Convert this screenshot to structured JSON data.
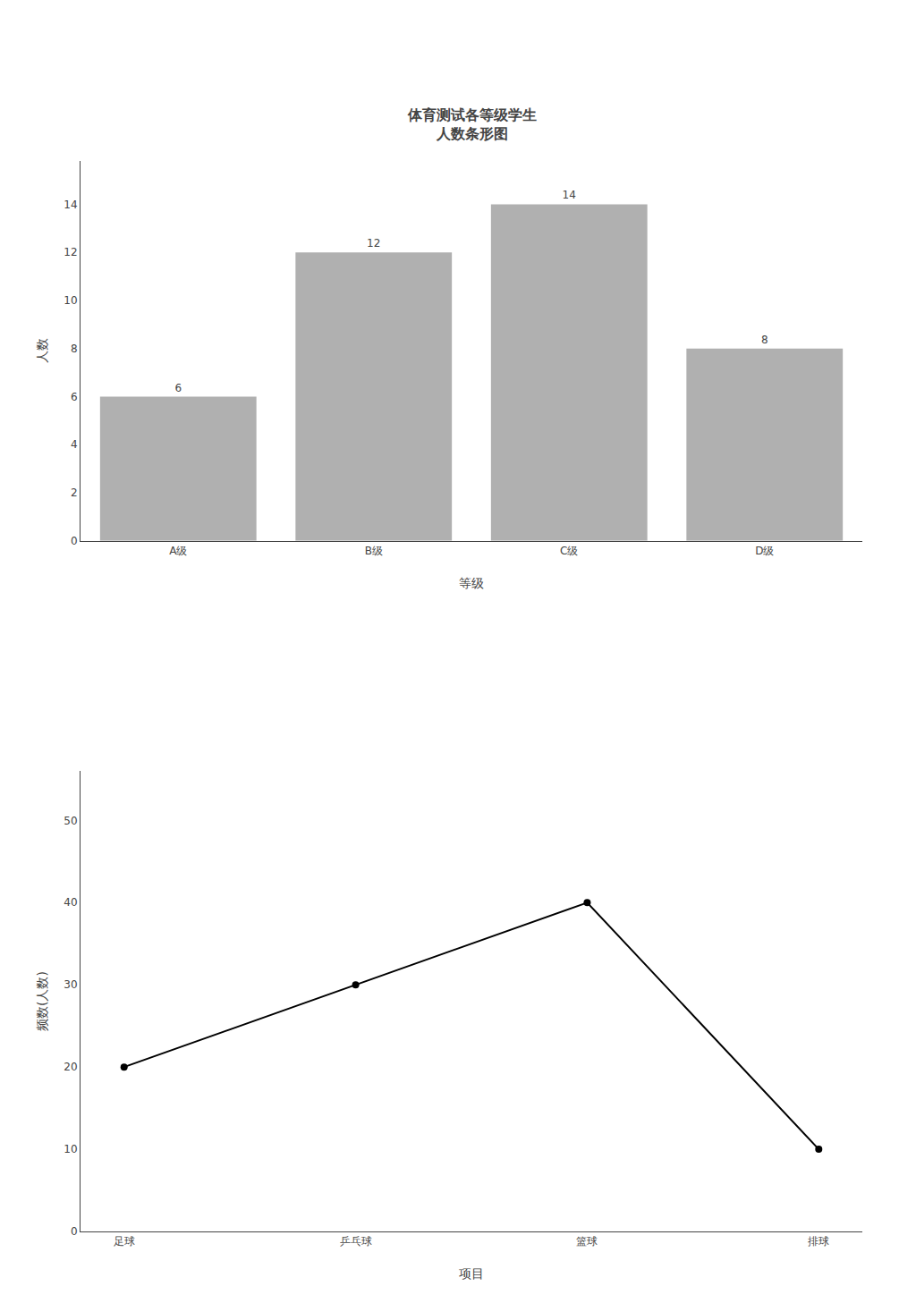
{
  "chart_data": [
    {
      "type": "bar",
      "title": "体育测试各等级学生\n人数条形图",
      "x_label": "等级",
      "y_label": "人数",
      "categories": [
        "A级",
        "B级",
        "C级",
        "D级"
      ],
      "values": [
        6,
        12,
        14,
        8
      ],
      "color": "#b0b0b0",
      "ylim": [
        0,
        15.8
      ],
      "yticks": [
        0,
        2,
        4,
        6,
        8,
        10,
        12,
        14
      ],
      "data_labels": true,
      "grid": false
    },
    {
      "type": "line",
      "x_label": "项目",
      "y_label": "频数(人数)",
      "categories": [
        "足球",
        "乒乓球",
        "篮球",
        "排球"
      ],
      "values": [
        20,
        30,
        40,
        10
      ],
      "color": "#000000",
      "marker": "circle",
      "line_style": "solid",
      "ylim": [
        0,
        56
      ],
      "yticks": [
        0,
        10,
        20,
        30,
        40,
        50
      ],
      "grid": false
    }
  ]
}
